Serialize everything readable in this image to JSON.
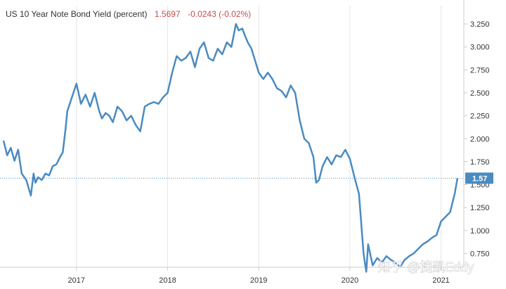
{
  "header": {
    "title": "US 10 Year Note Bond Yield (percent)",
    "price": "1.5697",
    "change": "-0.0243 (-0.02%)"
  },
  "watermark": "知乎 @捷凯Eddy",
  "colors": {
    "line": "#4a8bc2",
    "badge": "#4a8bc2",
    "reference_line": "#4a8bc2",
    "grid": "#e6e6e6",
    "axis": "#cccccc",
    "price": "#c0504d"
  },
  "chart_data": {
    "type": "line",
    "title": "US 10 Year Note Bond Yield (percent)",
    "xlabel": "",
    "ylabel": "",
    "ylim": [
      0.6,
      3.45
    ],
    "xlim": [
      2016.2,
      2021.25
    ],
    "y_ticks": [
      "0.750",
      "1.000",
      "1.250",
      "1.500",
      "1.750",
      "2.000",
      "2.250",
      "2.500",
      "2.750",
      "3.000",
      "3.250"
    ],
    "x_ticks": [
      "2017",
      "2018",
      "2019",
      "2020",
      "2021"
    ],
    "last_value_label": "1.57",
    "last_value": 1.57,
    "grid": "vertical",
    "series": [
      {
        "x": [
          2016.2,
          2016.24,
          2016.28,
          2016.32,
          2016.36,
          2016.4,
          2016.45,
          2016.5,
          2016.53,
          2016.55,
          2016.58,
          2016.62,
          2016.66,
          2016.7,
          2016.74,
          2016.78,
          2016.82,
          2016.85,
          2016.88,
          2016.9,
          2016.95,
          2017.0,
          2017.05,
          2017.1,
          2017.15,
          2017.2,
          2017.25,
          2017.28,
          2017.32,
          2017.36,
          2017.4,
          2017.45,
          2017.5,
          2017.55,
          2017.6,
          2017.65,
          2017.7,
          2017.75,
          2017.8,
          2017.85,
          2017.9,
          2017.95,
          2018.0,
          2018.05,
          2018.1,
          2018.15,
          2018.2,
          2018.25,
          2018.3,
          2018.35,
          2018.4,
          2018.45,
          2018.5,
          2018.55,
          2018.6,
          2018.65,
          2018.7,
          2018.75,
          2018.78,
          2018.82,
          2018.85,
          2018.88,
          2018.92,
          2018.96,
          2019.0,
          2019.05,
          2019.1,
          2019.15,
          2019.2,
          2019.25,
          2019.3,
          2019.35,
          2019.4,
          2019.45,
          2019.5,
          2019.55,
          2019.6,
          2019.63,
          2019.66,
          2019.7,
          2019.75,
          2019.8,
          2019.85,
          2019.9,
          2019.95,
          2020.0,
          2020.05,
          2020.1,
          2020.15,
          2020.18,
          2020.2,
          2020.25,
          2020.3,
          2020.35,
          2020.4,
          2020.45,
          2020.5,
          2020.55,
          2020.6,
          2020.65,
          2020.7,
          2020.75,
          2020.8,
          2020.85,
          2020.9,
          2020.95,
          2021.0,
          2021.05,
          2021.1,
          2021.15,
          2021.18
        ],
        "y": [
          1.98,
          1.82,
          1.9,
          1.76,
          1.88,
          1.62,
          1.55,
          1.38,
          1.62,
          1.52,
          1.58,
          1.55,
          1.62,
          1.6,
          1.7,
          1.72,
          1.8,
          1.85,
          2.1,
          2.3,
          2.45,
          2.6,
          2.38,
          2.48,
          2.35,
          2.5,
          2.3,
          2.22,
          2.28,
          2.25,
          2.18,
          2.35,
          2.3,
          2.2,
          2.25,
          2.15,
          2.08,
          2.35,
          2.38,
          2.4,
          2.38,
          2.45,
          2.5,
          2.72,
          2.9,
          2.85,
          2.88,
          2.95,
          2.78,
          2.98,
          3.05,
          2.88,
          2.85,
          2.98,
          2.92,
          3.05,
          3.0,
          3.25,
          3.18,
          3.2,
          3.12,
          3.05,
          2.98,
          2.85,
          2.72,
          2.65,
          2.72,
          2.65,
          2.55,
          2.52,
          2.45,
          2.58,
          2.5,
          2.2,
          2.0,
          1.95,
          1.8,
          1.52,
          1.55,
          1.7,
          1.8,
          1.72,
          1.82,
          1.8,
          1.88,
          1.78,
          1.58,
          1.4,
          0.75,
          0.55,
          0.85,
          0.62,
          0.7,
          0.65,
          0.72,
          0.68,
          0.65,
          0.6,
          0.68,
          0.72,
          0.75,
          0.8,
          0.85,
          0.88,
          0.92,
          0.95,
          1.1,
          1.15,
          1.2,
          1.4,
          1.57
        ]
      }
    ]
  }
}
